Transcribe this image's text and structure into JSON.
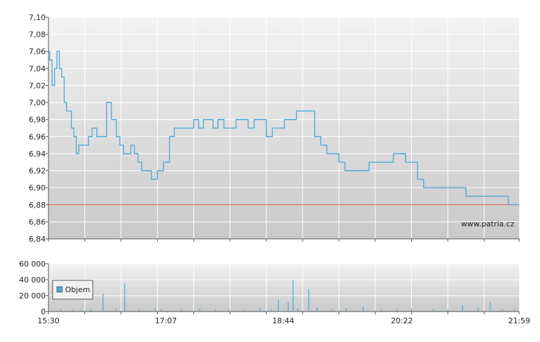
{
  "colors": {
    "background": "#ffffff",
    "plot_gradient_top": "#f3f3f3",
    "plot_gradient_bottom": "#c9c9c9",
    "grid": "#ffffff",
    "axis": "#555555",
    "price_line": "#4aa8d6",
    "reference_line": "#e24b3a",
    "volume_bars": "#4aa8d6",
    "legend_swatch": "#4aa8d6"
  },
  "watermark": "www.patria.cz",
  "chart_data": [
    {
      "type": "line",
      "name": "price",
      "x_ticks": [
        "15:30",
        "17:07",
        "18:44",
        "20:22",
        "21:59"
      ],
      "ylim": [
        6.84,
        7.1
      ],
      "y_ticks": [
        "7,10",
        "7,08",
        "7,06",
        "7,04",
        "7,02",
        "7,00",
        "6,98",
        "6,96",
        "6,94",
        "6,92",
        "6,90",
        "6,88",
        "6,86",
        "6,84"
      ],
      "grid": true,
      "reference_line": 6.88,
      "x": [
        "15:30",
        "15:31",
        "15:33",
        "15:35",
        "15:37",
        "15:39",
        "15:41",
        "15:43",
        "15:45",
        "15:47",
        "15:49",
        "15:51",
        "15:53",
        "15:55",
        "15:57",
        "16:00",
        "16:03",
        "16:06",
        "16:10",
        "16:14",
        "16:18",
        "16:22",
        "16:26",
        "16:29",
        "16:32",
        "16:35",
        "16:38",
        "16:41",
        "16:44",
        "16:47",
        "16:50",
        "16:55",
        "17:00",
        "17:05",
        "17:10",
        "17:14",
        "17:18",
        "17:22",
        "17:26",
        "17:30",
        "17:34",
        "17:38",
        "17:42",
        "17:46",
        "17:50",
        "17:55",
        "18:00",
        "18:05",
        "18:10",
        "18:15",
        "18:20",
        "18:25",
        "18:30",
        "18:35",
        "18:40",
        "18:45",
        "18:50",
        "18:55",
        "19:00",
        "19:05",
        "19:10",
        "19:15",
        "19:20",
        "19:25",
        "19:30",
        "19:35",
        "19:40",
        "19:45",
        "19:50",
        "19:55",
        "20:00",
        "20:05",
        "20:10",
        "20:15",
        "20:20",
        "20:25",
        "20:30",
        "20:35",
        "20:40",
        "20:45",
        "20:50",
        "20:55",
        "21:00",
        "21:05",
        "21:10",
        "21:15",
        "21:20",
        "21:25",
        "21:30",
        "21:35",
        "21:40",
        "21:45",
        "21:50",
        "21:55",
        "21:59"
      ],
      "values": [
        7.06,
        7.05,
        7.02,
        7.04,
        7.06,
        7.04,
        7.03,
        7.0,
        6.99,
        6.99,
        6.97,
        6.96,
        6.94,
        6.95,
        6.95,
        6.95,
        6.96,
        6.97,
        6.96,
        6.96,
        7.0,
        6.98,
        6.96,
        6.95,
        6.94,
        6.94,
        6.95,
        6.94,
        6.93,
        6.92,
        6.92,
        6.91,
        6.92,
        6.93,
        6.96,
        6.97,
        6.97,
        6.97,
        6.97,
        6.98,
        6.97,
        6.98,
        6.98,
        6.97,
        6.98,
        6.97,
        6.97,
        6.98,
        6.98,
        6.97,
        6.98,
        6.98,
        6.96,
        6.97,
        6.97,
        6.98,
        6.98,
        6.99,
        6.99,
        6.99,
        6.96,
        6.95,
        6.94,
        6.94,
        6.93,
        6.92,
        6.92,
        6.92,
        6.92,
        6.93,
        6.93,
        6.93,
        6.93,
        6.94,
        6.94,
        6.93,
        6.93,
        6.91,
        6.9,
        6.9,
        6.9,
        6.9,
        6.9,
        6.9,
        6.9,
        6.89,
        6.89,
        6.89,
        6.89,
        6.89,
        6.89,
        6.89,
        6.88,
        6.88,
        6.88
      ]
    },
    {
      "type": "bar",
      "name": "volume",
      "x_ticks": [
        "15:30",
        "17:07",
        "18:44",
        "20:22",
        "21:59"
      ],
      "ylim": [
        0,
        60000
      ],
      "y_ticks": [
        "60 000",
        "40 000",
        "20 000",
        "0"
      ],
      "grid": true,
      "legend": {
        "label": "Objem",
        "position": "left"
      },
      "x": [
        "15:40",
        "15:50",
        "15:56",
        "16:05",
        "16:15",
        "16:26",
        "16:33",
        "16:45",
        "16:58",
        "17:03",
        "17:20",
        "17:35",
        "17:48",
        "17:59",
        "18:12",
        "18:25",
        "18:34",
        "18:40",
        "18:48",
        "18:52",
        "18:56",
        "19:05",
        "19:12",
        "19:24",
        "19:36",
        "19:50",
        "20:05",
        "20:18",
        "20:30",
        "20:48",
        "21:00",
        "21:12",
        "21:25",
        "21:35",
        "21:45",
        "21:55"
      ],
      "values": [
        3000,
        2500,
        2000,
        3000,
        22000,
        3500,
        35000,
        3000,
        4000,
        2500,
        3000,
        4000,
        2500,
        3000,
        2000,
        4000,
        2500,
        15000,
        12000,
        40000,
        4000,
        28000,
        5000,
        3000,
        4000,
        6000,
        2500,
        3000,
        3500,
        3000,
        2500,
        8000,
        4000,
        12000,
        3000,
        3000
      ]
    }
  ]
}
